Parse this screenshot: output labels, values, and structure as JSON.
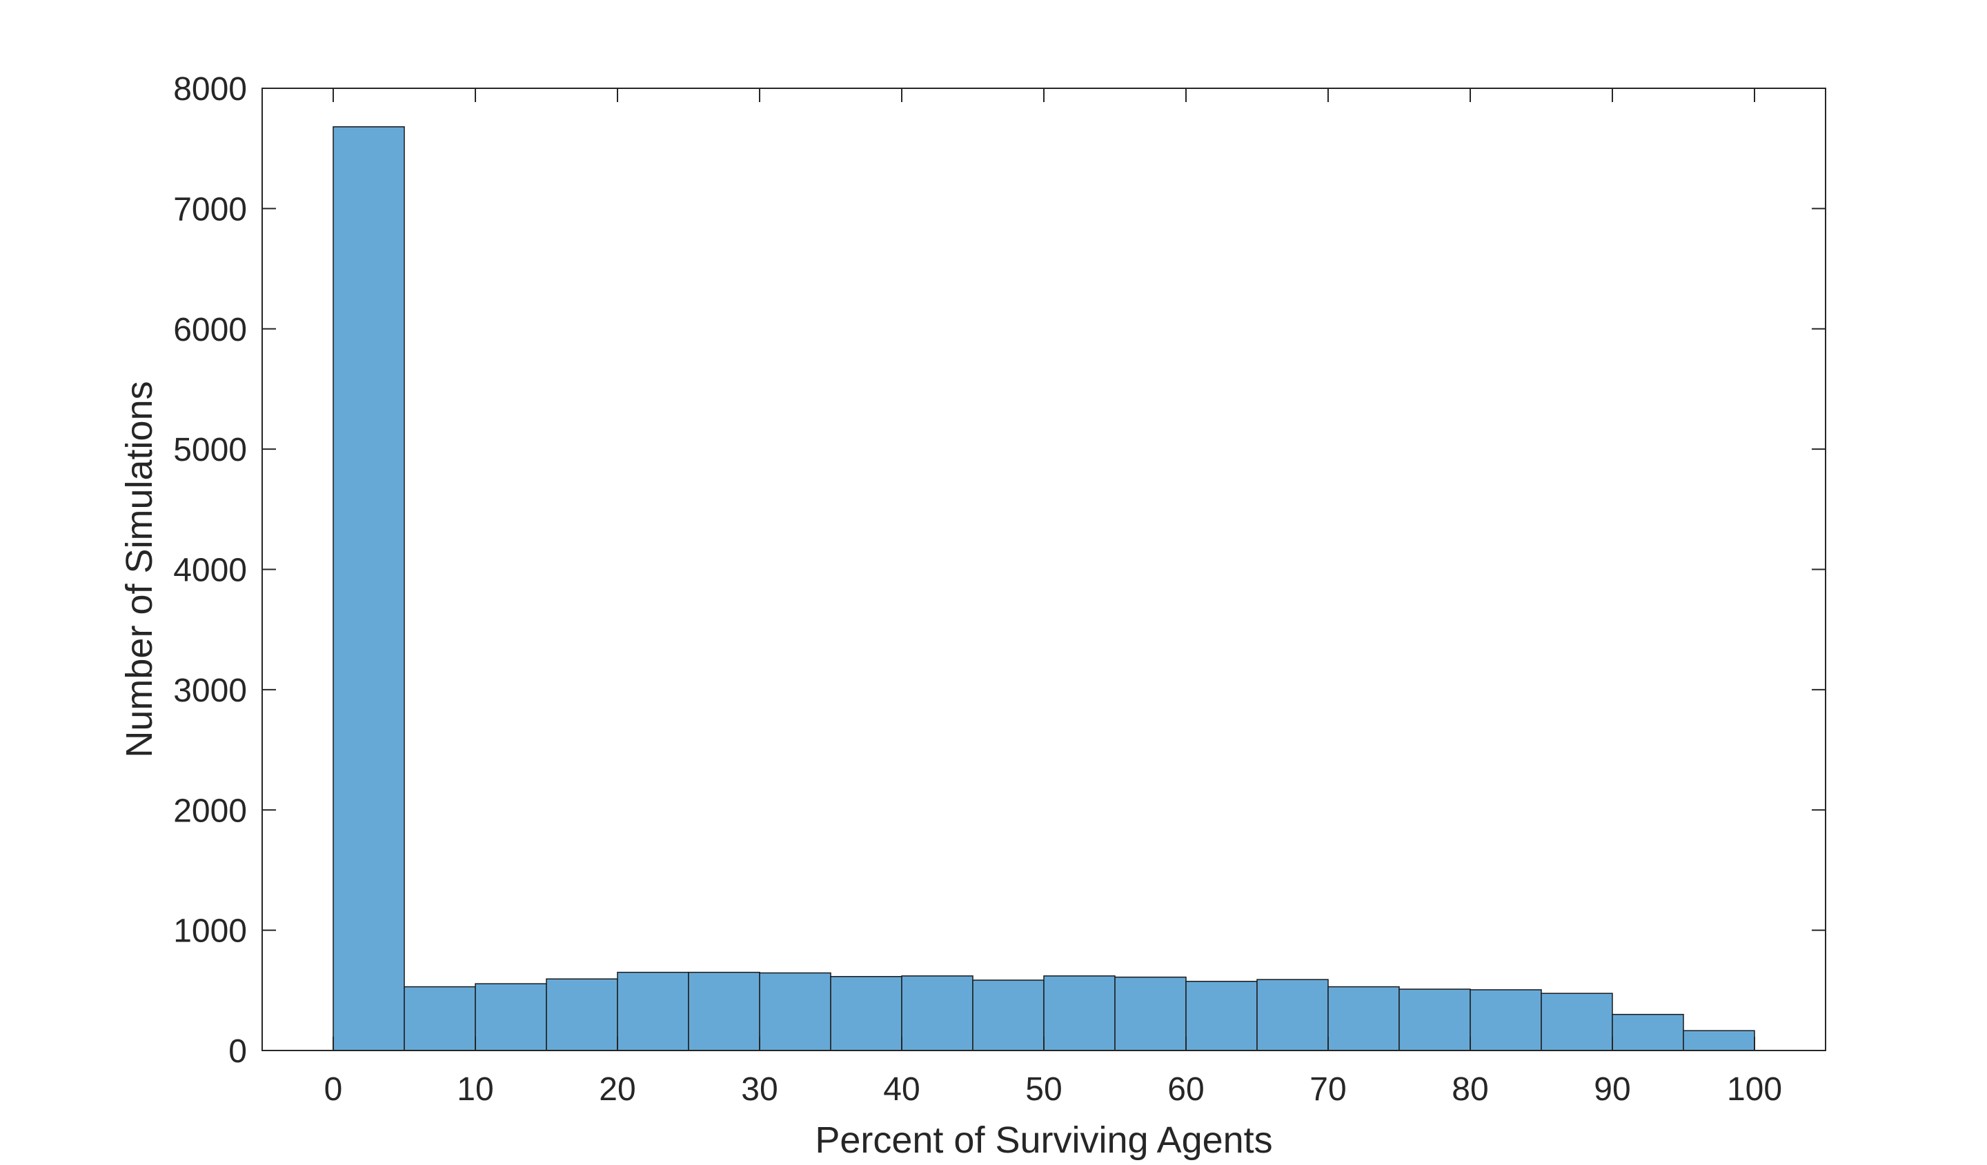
{
  "chart_data": {
    "type": "bar",
    "xlabel": "Percent of Surviving Agents",
    "ylabel": "Number of Simulations",
    "xlim": [
      -5,
      105
    ],
    "ylim": [
      0,
      8000
    ],
    "x_ticks": [
      0,
      10,
      20,
      30,
      40,
      50,
      60,
      70,
      80,
      90,
      100
    ],
    "y_ticks": [
      0,
      1000,
      2000,
      3000,
      4000,
      5000,
      6000,
      7000,
      8000
    ],
    "bin_edges": [
      0,
      5,
      10,
      15,
      20,
      25,
      30,
      35,
      40,
      45,
      50,
      55,
      60,
      65,
      70,
      75,
      80,
      85,
      90,
      95,
      100
    ],
    "values": [
      7680,
      530,
      555,
      595,
      650,
      650,
      645,
      615,
      620,
      585,
      620,
      610,
      575,
      590,
      530,
      510,
      505,
      475,
      300,
      165
    ],
    "bar_color": "#67a9d6",
    "edge_color": "#1a1a1a",
    "grid": false
  }
}
